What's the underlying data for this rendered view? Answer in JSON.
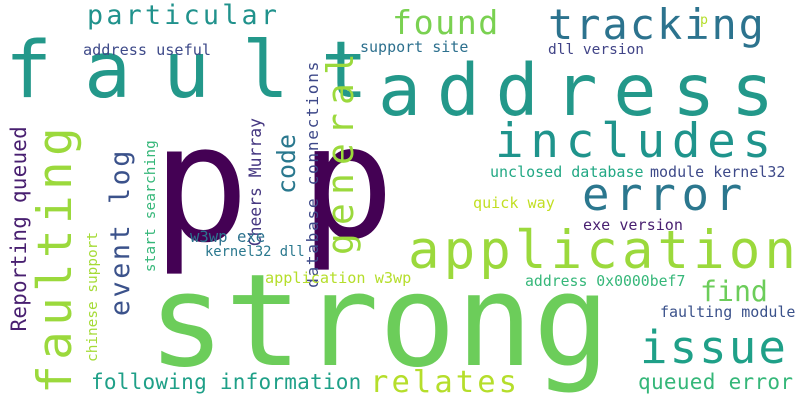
{
  "words": [
    {
      "id": "p1",
      "text": "p",
      "color": "#440154"
    },
    {
      "id": "p2",
      "text": "p",
      "color": "#440154"
    },
    {
      "id": "strong",
      "text": "strong",
      "color": "#6ccd5a"
    },
    {
      "id": "fault",
      "text": "fault",
      "color": "#23988a"
    },
    {
      "id": "address",
      "text": "address",
      "color": "#23988a"
    },
    {
      "id": "application",
      "text": "application",
      "color": "#9bd93c"
    },
    {
      "id": "faulting",
      "text": "faulting",
      "color": "#9bd93c"
    },
    {
      "id": "includes",
      "text": "includes",
      "color": "#1f948c"
    },
    {
      "id": "tracking",
      "text": "tracking",
      "color": "#2c738e"
    },
    {
      "id": "error",
      "text": "error",
      "color": "#2b778e"
    },
    {
      "id": "general",
      "text": "general",
      "color": "#9bd93c"
    },
    {
      "id": "particular",
      "text": "particular",
      "color": "#20928c"
    },
    {
      "id": "found",
      "text": "found",
      "color": "#7ad151"
    },
    {
      "id": "issue",
      "text": "issue",
      "color": "#1fa088"
    },
    {
      "id": "event-log",
      "text": "event log",
      "color": "#3b528b"
    },
    {
      "id": "relates",
      "text": "relates",
      "color": "#b5de2b"
    },
    {
      "id": "code",
      "text": "code",
      "color": "#2a788e"
    },
    {
      "id": "find",
      "text": "find",
      "color": "#6ccd5a"
    },
    {
      "id": "following-information",
      "text": "following information",
      "color": "#1fa088"
    },
    {
      "id": "queued-error",
      "text": "queued error",
      "color": "#35b779"
    },
    {
      "id": "reporting-queued",
      "text": "Reporting queued",
      "color": "#481f70"
    },
    {
      "id": "chinese-support",
      "text": "chinese support",
      "color": "#a5db36"
    },
    {
      "id": "start-searching",
      "text": "start searching",
      "color": "#35b779"
    },
    {
      "id": "cheers-murray",
      "text": "Cheers Murray",
      "color": "#453781"
    },
    {
      "id": "database-connections",
      "text": "database connections",
      "color": "#3e4989"
    },
    {
      "id": "address-useful",
      "text": "address useful",
      "color": "#3e4a89"
    },
    {
      "id": "support-site",
      "text": "support site",
      "color": "#2d708e"
    },
    {
      "id": "dll-version",
      "text": "dll version",
      "color": "#414487"
    },
    {
      "id": "unclosed-database",
      "text": "unclosed database",
      "color": "#22a884"
    },
    {
      "id": "module-kernel32",
      "text": "module kernel32",
      "color": "#3e4a89"
    },
    {
      "id": "quick-way",
      "text": "quick way",
      "color": "#c2df23"
    },
    {
      "id": "exe-version",
      "text": "exe version",
      "color": "#481f70"
    },
    {
      "id": "w3wp-exe",
      "text": "w3wp exe",
      "color": "#2c728e"
    },
    {
      "id": "kernel32-dll",
      "text": "kernel32 dll",
      "color": "#2a788e"
    },
    {
      "id": "application-w3wp",
      "text": "application w3wp",
      "color": "#b5de2b"
    },
    {
      "id": "address-0x0000bef7",
      "text": "address 0x0000bef7",
      "color": "#35b779"
    },
    {
      "id": "faulting-module",
      "text": "faulting module",
      "color": "#3b528b"
    },
    {
      "id": "p-small",
      "text": "p",
      "color": "#b5de2b"
    }
  ]
}
